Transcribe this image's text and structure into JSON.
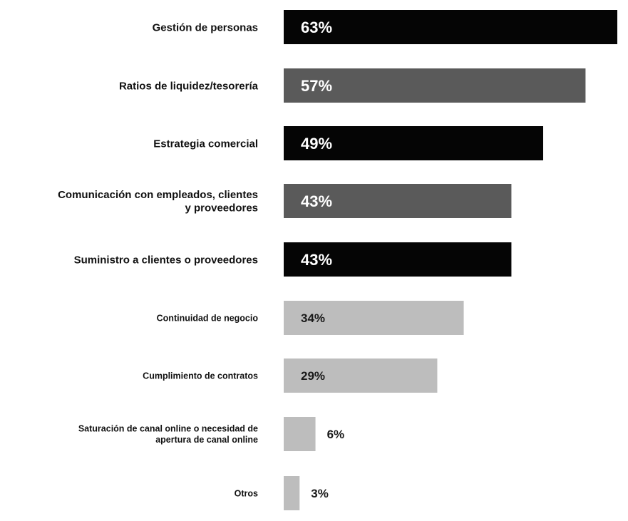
{
  "chart_data": {
    "type": "bar",
    "orientation": "horizontal",
    "categories": [
      "Gestión de personas",
      "Ratios de liquidez/tesorería",
      "Estrategia comercial",
      "Comunicación con empleados, clientes y proveedores",
      "Suministro a clientes o proveedores",
      "Continuidad de negocio",
      "Cumplimiento de contratos",
      "Saturación de canal online o necesidad de apertura de canal online",
      "Otros"
    ],
    "category_lines": [
      [
        "Gestión de personas"
      ],
      [
        "Ratios de liquidez/tesorería"
      ],
      [
        "Estrategia comercial"
      ],
      [
        "Comunicación con empleados, clientes",
        "y proveedores"
      ],
      [
        "Suministro a clientes o proveedores"
      ],
      [
        "Continuidad de negocio"
      ],
      [
        "Cumplimiento de contratos"
      ],
      [
        "Saturación de canal online o necesidad de",
        "apertura de canal online"
      ],
      [
        "Otros"
      ]
    ],
    "values": [
      63,
      57,
      49,
      43,
      43,
      34,
      29,
      6,
      3
    ],
    "value_labels": [
      "63%",
      "57%",
      "49%",
      "43%",
      "43%",
      "34%",
      "29%",
      "6%",
      "3%"
    ],
    "bar_colors": [
      "#050505",
      "#5a5a5a",
      "#050505",
      "#5a5a5a",
      "#050505",
      "#bdbdbd",
      "#bdbdbd",
      "#bdbdbd",
      "#bdbdbd"
    ],
    "value_label_colors": [
      "#ffffff",
      "#ffffff",
      "#ffffff",
      "#ffffff",
      "#ffffff",
      "#1a1a1a",
      "#1a1a1a",
      "#1a1a1a",
      "#1a1a1a"
    ],
    "value_label_inside": [
      true,
      true,
      true,
      true,
      true,
      true,
      true,
      false,
      false
    ],
    "xlim": [
      0,
      63
    ],
    "grid": false,
    "legend": "none",
    "title": "",
    "xlabel": "",
    "ylabel": ""
  }
}
